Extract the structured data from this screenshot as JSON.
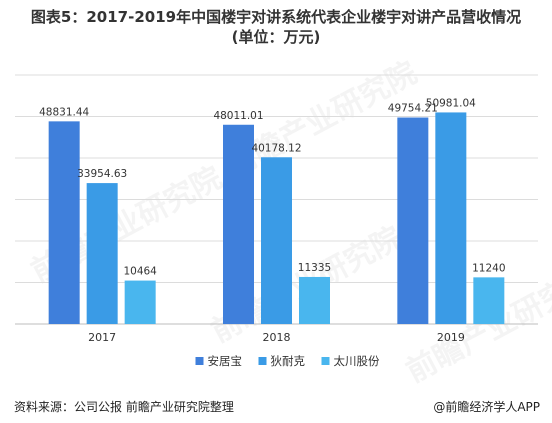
{
  "header": {
    "title_line1": "图表5：2017-2019年中国楼宇对讲系统代表企业楼宇对讲产品营收情况",
    "title_line2": "(单位：万元)"
  },
  "chart_data": {
    "type": "bar",
    "categories": [
      "2017",
      "2018",
      "2019"
    ],
    "series": [
      {
        "name": "安居宝",
        "color": "#3f7fdb",
        "values": [
          48831.44,
          48011.01,
          49754.21
        ],
        "labels": [
          "48831.44",
          "48011.01",
          "49754.21"
        ]
      },
      {
        "name": "狄耐克",
        "color": "#3a9be6",
        "values": [
          33954.63,
          40178.12,
          50981.04
        ],
        "labels": [
          "33954.63",
          "40178.12",
          "50981.04"
        ]
      },
      {
        "name": "太川股份",
        "color": "#49b6ee",
        "values": [
          10464,
          11335,
          11240
        ],
        "labels": [
          "10464",
          "11335",
          "11240"
        ]
      }
    ],
    "ylim": [
      0,
      60000
    ],
    "grid": true,
    "legend": "bottom"
  },
  "watermark": {
    "text": "前瞻产业研究院"
  },
  "footer": {
    "source": "资料来源：公司公报 前瞻产业研究院整理",
    "credit": "@前瞻经济学人APP"
  }
}
